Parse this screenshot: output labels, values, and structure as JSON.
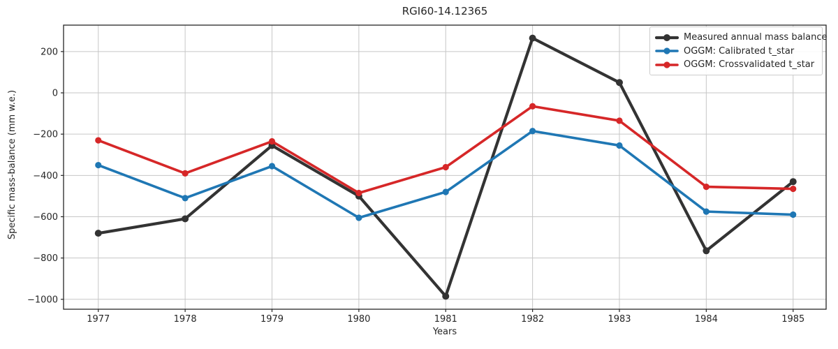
{
  "chart_data": {
    "type": "line",
    "title": "RGI60-14.12365",
    "xlabel": "Years",
    "ylabel": "Specific mass-balance (mm w.e.)",
    "x": [
      1977,
      1978,
      1979,
      1980,
      1981,
      1982,
      1983,
      1984,
      1985
    ],
    "series": [
      {
        "name": "Measured annual mass balance",
        "color": "#333333",
        "values": [
          -680,
          -610,
          -255,
          -500,
          -985,
          265,
          50,
          -765,
          -430
        ]
      },
      {
        "name": "OGGM: Calibrated t_star",
        "color": "#1f77b4",
        "values": [
          -350,
          -510,
          -355,
          -605,
          -480,
          -185,
          -255,
          -575,
          -590
        ]
      },
      {
        "name": "OGGM: Crossvalidated t_star",
        "color": "#d62728",
        "values": [
          -230,
          -390,
          -235,
          -485,
          -360,
          -65,
          -135,
          -455,
          -465
        ]
      }
    ],
    "xticks": [
      1977,
      1978,
      1979,
      1980,
      1981,
      1982,
      1983,
      1984,
      1985
    ],
    "yticks": [
      200,
      0,
      -200,
      -400,
      -600,
      -800,
      -1000
    ],
    "xlim": [
      1976.6,
      1985.38
    ],
    "ylim": [
      -1048,
      328
    ],
    "grid": true,
    "legend_position": "upper right"
  }
}
